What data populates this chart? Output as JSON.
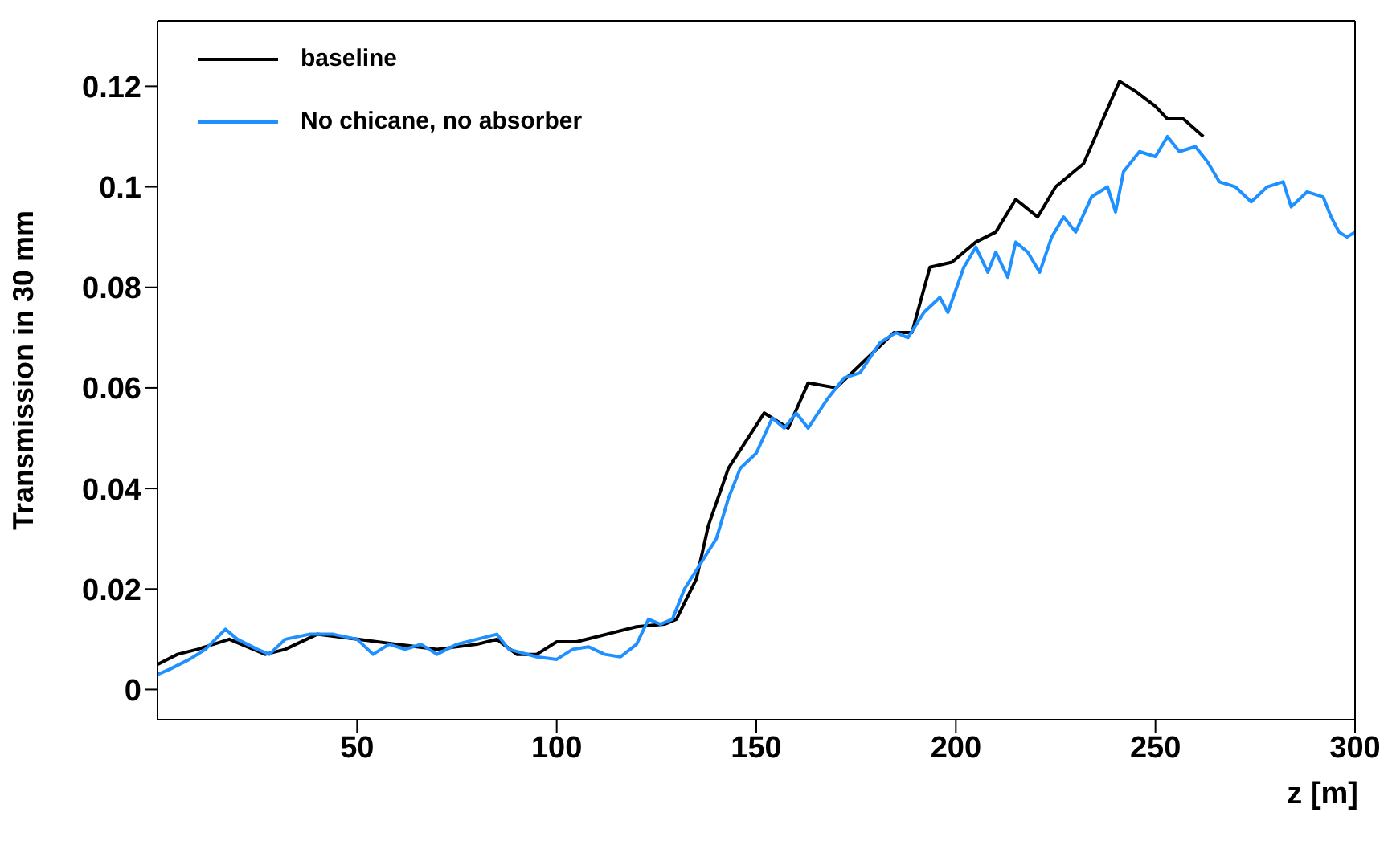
{
  "chart_data": {
    "type": "line",
    "xlabel": "z [m]",
    "ylabel": "Transmission in 30 mm",
    "xlim": [
      0,
      300
    ],
    "xticks": [
      50,
      100,
      150,
      200,
      250,
      300
    ],
    "ylim": [
      -0.006,
      0.133
    ],
    "yticks": [
      0,
      0.02,
      0.04,
      0.06,
      0.08,
      0.1,
      0.12
    ],
    "legend": "top left",
    "marker": "none",
    "line_style": "solid",
    "series": [
      {
        "name": "baseline",
        "color": "#000000",
        "x": [
          0,
          5,
          10,
          18,
          27,
          32,
          40,
          50,
          60,
          70,
          80,
          85,
          90,
          95,
          100,
          105,
          110,
          120,
          127,
          130,
          135,
          138,
          143,
          152,
          158,
          163,
          170,
          184.5,
          189,
          193.5,
          199,
          205,
          210,
          215,
          220.5,
          225,
          232,
          241,
          245,
          250,
          253,
          257,
          262
        ],
        "values": [
          0.005,
          0.007,
          0.008,
          0.01,
          0.007,
          0.008,
          0.011,
          0.01,
          0.009,
          0.008,
          0.009,
          0.01,
          0.007,
          0.007,
          0.0095,
          0.0095,
          0.0105,
          0.0125,
          0.013,
          0.014,
          0.022,
          0.0326,
          0.044,
          0.055,
          0.052,
          0.061,
          0.06,
          0.071,
          0.071,
          0.084,
          0.085,
          0.089,
          0.091,
          0.0975,
          0.094,
          0.1,
          0.1046,
          0.121,
          0.119,
          0.116,
          0.1135,
          0.1135,
          0.11
        ]
      },
      {
        "name": "No chicane, no absorber",
        "color": "#1e90ff",
        "x": [
          0,
          3,
          8,
          12,
          17,
          20,
          25,
          28,
          32,
          38,
          44,
          50,
          54,
          58,
          62,
          66,
          70,
          75,
          80,
          85,
          88,
          95,
          100,
          104,
          108,
          112,
          116,
          120,
          123,
          126,
          129,
          132,
          136,
          140,
          143,
          146,
          150,
          154,
          157,
          160,
          163,
          168,
          172,
          176,
          181,
          185,
          188,
          192,
          196,
          198,
          202,
          205,
          208,
          210,
          213,
          215,
          218,
          221,
          224,
          227,
          230,
          234,
          238,
          240,
          242,
          246,
          250,
          253,
          256,
          260,
          263,
          266,
          270,
          274,
          278,
          282,
          284,
          288,
          292,
          294,
          296,
          298,
          300
        ],
        "values": [
          0.003,
          0.004,
          0.006,
          0.008,
          0.012,
          0.01,
          0.008,
          0.007,
          0.01,
          0.011,
          0.011,
          0.01,
          0.007,
          0.009,
          0.008,
          0.009,
          0.007,
          0.009,
          0.01,
          0.011,
          0.008,
          0.0065,
          0.006,
          0.008,
          0.0085,
          0.007,
          0.0065,
          0.009,
          0.014,
          0.013,
          0.014,
          0.02,
          0.025,
          0.03,
          0.038,
          0.044,
          0.047,
          0.054,
          0.052,
          0.055,
          0.052,
          0.058,
          0.062,
          0.063,
          0.069,
          0.071,
          0.07,
          0.075,
          0.078,
          0.075,
          0.084,
          0.088,
          0.083,
          0.087,
          0.082,
          0.089,
          0.087,
          0.083,
          0.09,
          0.094,
          0.091,
          0.098,
          0.1,
          0.095,
          0.103,
          0.107,
          0.106,
          0.11,
          0.107,
          0.108,
          0.105,
          0.101,
          0.1,
          0.097,
          0.1,
          0.101,
          0.096,
          0.099,
          0.098,
          0.094,
          0.091,
          0.09,
          0.091
        ]
      }
    ]
  }
}
